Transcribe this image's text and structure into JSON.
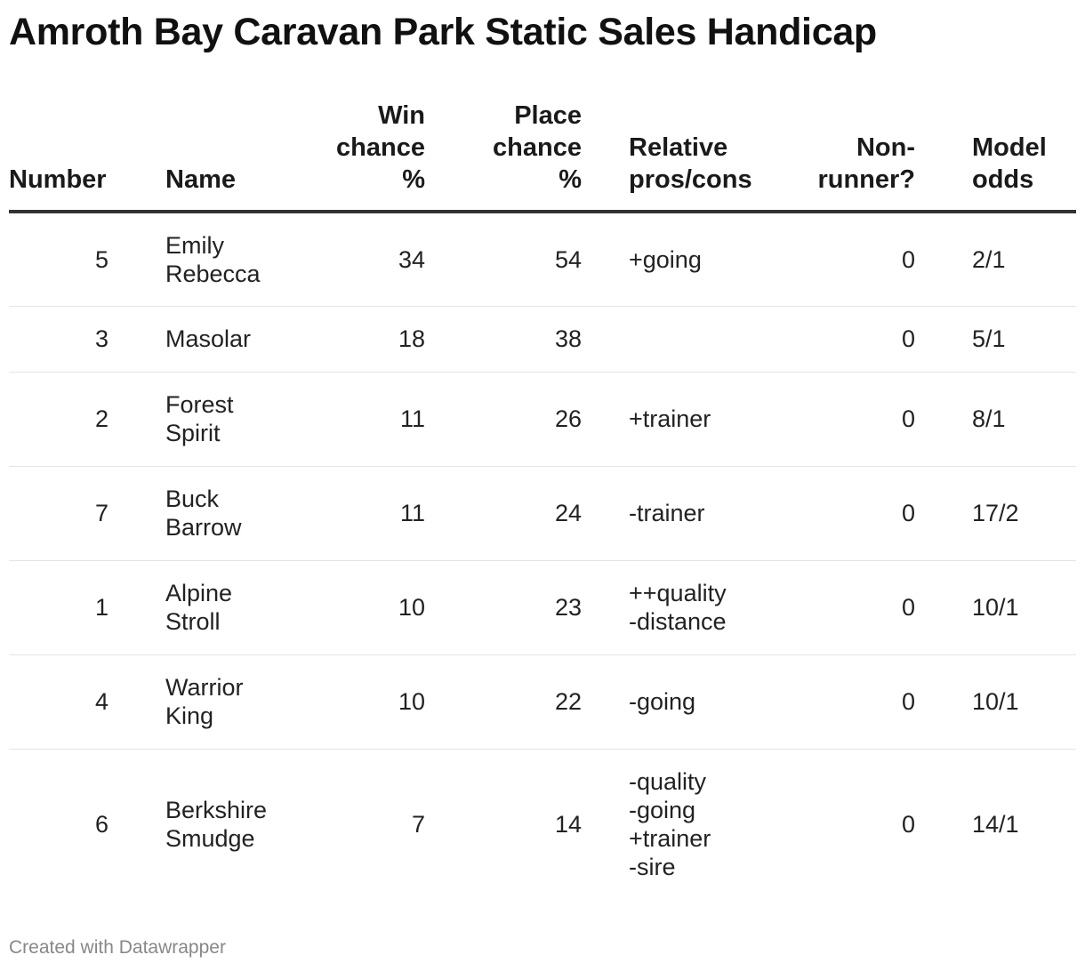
{
  "title": "Amroth Bay Caravan Park Static Sales Handicap",
  "footer": "Created with Datawrapper",
  "chart_data": {
    "type": "table",
    "title": "Amroth Bay Caravan Park Static Sales Handicap",
    "columns": {
      "number": "Number",
      "name": "Name",
      "win": [
        "Win",
        "chance",
        "%"
      ],
      "place": [
        "Place",
        "chance",
        "%"
      ],
      "pros": [
        "Relative",
        "pros/cons"
      ],
      "nonrunner": [
        "Non-",
        "runner?"
      ],
      "odds": [
        "Model",
        "odds"
      ]
    },
    "rows": [
      {
        "number": "5",
        "name": [
          "Emily",
          "Rebecca"
        ],
        "win": "34",
        "place": "54",
        "pros": [
          "+going"
        ],
        "nonrunner": "0",
        "odds": "2/1"
      },
      {
        "number": "3",
        "name": [
          "Masolar"
        ],
        "win": "18",
        "place": "38",
        "pros": [],
        "nonrunner": "0",
        "odds": "5/1"
      },
      {
        "number": "2",
        "name": [
          "Forest",
          "Spirit"
        ],
        "win": "11",
        "place": "26",
        "pros": [
          "+trainer"
        ],
        "nonrunner": "0",
        "odds": "8/1"
      },
      {
        "number": "7",
        "name": [
          "Buck",
          "Barrow"
        ],
        "win": "11",
        "place": "24",
        "pros": [
          "-trainer"
        ],
        "nonrunner": "0",
        "odds": "17/2"
      },
      {
        "number": "1",
        "name": [
          "Alpine",
          "Stroll"
        ],
        "win": "10",
        "place": "23",
        "pros": [
          "++quality",
          "-distance"
        ],
        "nonrunner": "0",
        "odds": "10/1"
      },
      {
        "number": "4",
        "name": [
          "Warrior",
          "King"
        ],
        "win": "10",
        "place": "22",
        "pros": [
          "-going"
        ],
        "nonrunner": "0",
        "odds": "10/1"
      },
      {
        "number": "6",
        "name": [
          "Berkshire",
          "Smudge"
        ],
        "win": "7",
        "place": "14",
        "pros": [
          "-quality",
          "-going",
          "+trainer",
          "-sire"
        ],
        "nonrunner": "0",
        "odds": "14/1"
      }
    ]
  }
}
